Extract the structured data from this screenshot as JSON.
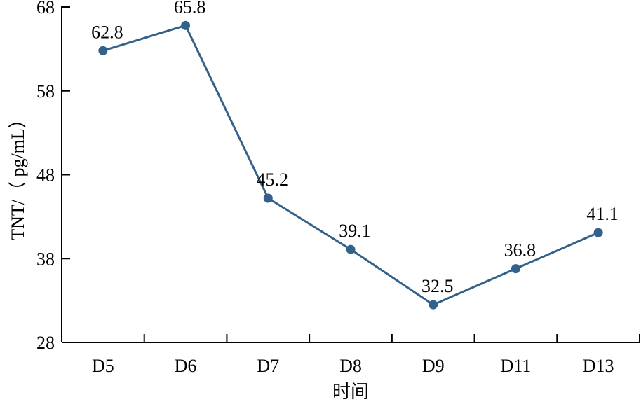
{
  "chart_data": {
    "type": "line",
    "categories": [
      "D5",
      "D6",
      "D7",
      "D8",
      "D9",
      "D11",
      "D13"
    ],
    "values": [
      62.8,
      65.8,
      45.2,
      39.1,
      32.5,
      36.8,
      41.1
    ],
    "data_labels": [
      "62.8",
      "65.8",
      "45.2",
      "39.1",
      "32.5",
      "36.8",
      "41.1"
    ],
    "title": "",
    "xlabel": "时间",
    "ylabel": "TNT/（ pg/mL）",
    "ylim": [
      28,
      68
    ],
    "yticks": [
      28,
      38,
      48,
      58,
      68
    ],
    "grid": false,
    "legend": "none",
    "line_color": "#34618a"
  }
}
